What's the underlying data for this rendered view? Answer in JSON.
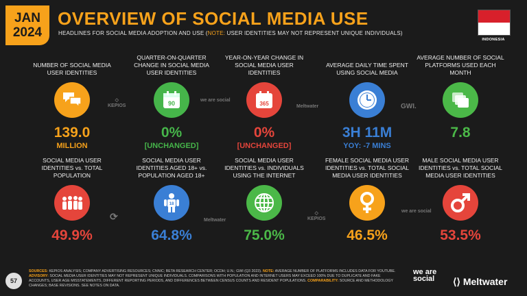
{
  "header": {
    "date_month": "JAN",
    "date_year": "2024",
    "title": "OVERVIEW OF SOCIAL MEDIA USE",
    "subtitle_main": "HEADLINES FOR SOCIAL MEDIA ADOPTION AND USE (",
    "subtitle_note": "NOTE:",
    "subtitle_rest": " USER IDENTITIES MAY NOT REPRESENT UNIQUE INDIVIDUALS)",
    "country": "INDONESIA"
  },
  "tiles_row1": [
    {
      "label": "NUMBER OF SOCIAL MEDIA USER IDENTITIES",
      "value": "139.0",
      "sub": "MILLION",
      "icon": "chat-bubbles-icon"
    },
    {
      "label": "QUARTER-ON-QUARTER CHANGE IN SOCIAL MEDIA USER IDENTITIES",
      "value": "0%",
      "sub": "[UNCHANGED]",
      "icon": "calendar-90-icon",
      "icon_text": "90"
    },
    {
      "label": "YEAR-ON-YEAR CHANGE IN SOCIAL MEDIA USER IDENTITIES",
      "value": "0%",
      "sub": "[UNCHANGED]",
      "icon": "calendar-365-icon",
      "icon_text": "365"
    },
    {
      "label": "AVERAGE DAILY TIME SPENT USING SOCIAL MEDIA",
      "value": "3H 11M",
      "sub": "YOY: -7 MINS",
      "icon": "clock-icon"
    },
    {
      "label": "AVERAGE NUMBER OF SOCIAL PLATFORMS USED EACH MONTH",
      "value": "7.8",
      "sub": "",
      "icon": "stacked-cards-icon"
    }
  ],
  "tiles_row2": [
    {
      "label": "SOCIAL MEDIA USER IDENTITIES vs. TOTAL POPULATION",
      "value": "49.9%",
      "icon": "crowd-icon"
    },
    {
      "label": "SOCIAL MEDIA USER IDENTITIES AGED 18+ vs. POPULATION AGED 18+",
      "value": "64.8%",
      "icon": "adult-18-icon",
      "icon_text": "18"
    },
    {
      "label": "SOCIAL MEDIA USER IDENTITIES vs. INDIVIDUALS USING THE INTERNET",
      "value": "75.0%",
      "icon": "globe-icon"
    },
    {
      "label": "FEMALE SOCIAL MEDIA USER IDENTITIES vs. TOTAL SOCIAL MEDIA USER IDENTITIES",
      "value": "46.5%",
      "icon": "female-symbol-icon"
    },
    {
      "label": "MALE SOCIAL MEDIA USER IDENTITIES vs. TOTAL SOCIAL MEDIA USER IDENTITIES",
      "value": "53.5%",
      "icon": "male-symbol-icon"
    }
  ],
  "source_logos": {
    "kepios": "KEPIOS",
    "was": "we are social",
    "meltwater": "Meltwater",
    "gwi": "GWI."
  },
  "footer": {
    "page": "57",
    "sources_label": "SOURCES:",
    "sources_text": " KEPIOS ANALYSIS; COMPANY ADVERTISING RESOURCES; CNNIC; BETA RESEARCH CENTER; OCDH; U.N.; GWI (Q3 2023). ",
    "note_label": "NOTE:",
    "note_text": " AVERAGE NUMBER OF PLATFORMS INCLUDES DATA FOR YOUTUBE. ",
    "advisory_label": "ADVISORY:",
    "advisory_text": " SOCIAL MEDIA USER IDENTITIES MAY NOT REPRESENT UNIQUE INDIVIDUALS. COMPARISONS WITH POPULATION AND INTERNET USERS MAY EXCEED 100% DUE TO DUPLICATE AND FAKE ACCOUNTS, USER AGE MISSTATEMENTS, DIFFERENT REPORTING PERIODS, AND DIFFERENCES BETWEEN CENSUS COUNTS AND RESIDENT POPULATIONS. ",
    "comparability_label": "COMPARABILITY:",
    "comparability_text": " SOURCE AND METHODOLOGY CHANGES; BASE REVISIONS. SEE NOTES ON DATA.",
    "brand1": "we are social",
    "brand2": "Meltwater"
  }
}
